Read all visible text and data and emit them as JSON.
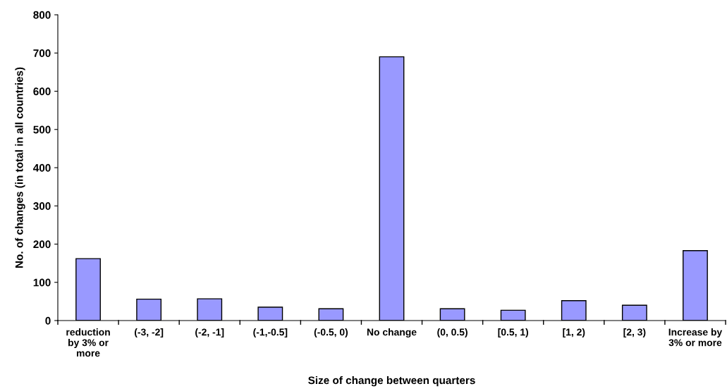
{
  "chart_data": {
    "type": "bar",
    "xlabel": "Size of change between quarters",
    "ylabel": "No. of changes (in total in all countries)",
    "categories": [
      "reduction by 3% or more",
      "(-3, -2]",
      "(-2, -1]",
      "(-1,-0.5]",
      "(-0.5, 0)",
      "No change",
      "(0, 0.5)",
      "[0.5, 1)",
      "[1, 2)",
      "[2, 3)",
      "Increase by 3% or more"
    ],
    "values": [
      162,
      56,
      57,
      35,
      31,
      690,
      31,
      27,
      52,
      40,
      183
    ],
    "color": "#9999ff",
    "ylim": [
      0,
      800
    ],
    "yticks": [
      0,
      100,
      200,
      300,
      400,
      500,
      600,
      700,
      800
    ],
    "grid": false,
    "legend": false
  }
}
